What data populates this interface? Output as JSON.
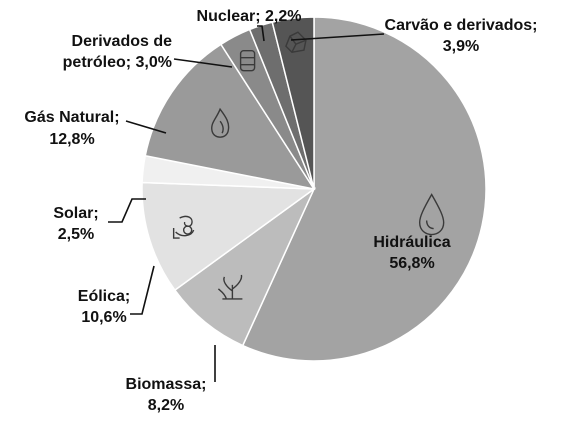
{
  "chart_data": {
    "type": "pie",
    "slices": [
      {
        "label": "Hidráulica",
        "value": 56.8,
        "line1": "Hidráulica",
        "line2": "56,8%",
        "color": "#a3a3a3",
        "icon": "water-drop-icon"
      },
      {
        "label": "Biomassa",
        "value": 8.2,
        "line1": "Biomassa;",
        "line2": "8,2%",
        "color": "#bcbcbc",
        "icon": "plant-icon"
      },
      {
        "label": "Eólica",
        "value": 10.6,
        "line1": "Eólica;",
        "line2": "10,6%",
        "color": "#e2e2e2",
        "icon": "wind-icon"
      },
      {
        "label": "Solar",
        "value": 2.5,
        "line1": "Solar;",
        "line2": "2,5%",
        "color": "#f0f0f0",
        "icon": ""
      },
      {
        "label": "Gás Natural",
        "value": 12.8,
        "line1": "Gás Natural;",
        "line2": "12,8%",
        "color": "#9a9a9a",
        "icon": "flame-icon"
      },
      {
        "label": "Derivados de petróleo",
        "value": 3.0,
        "line1": "Derivados de",
        "line2": "petróleo; 3,0%",
        "color": "#8a8a8a",
        "icon": "oil-barrel-icon"
      },
      {
        "label": "Nuclear",
        "value": 2.2,
        "line1": "Nuclear; 2,2%",
        "line2": "",
        "color": "#6e6e6e",
        "icon": ""
      },
      {
        "label": "Carvão e derivados",
        "value": 3.9,
        "line1": "Carvão e derivados;",
        "line2": "3,9%",
        "color": "#555555",
        "icon": "coal-icon"
      }
    ]
  }
}
